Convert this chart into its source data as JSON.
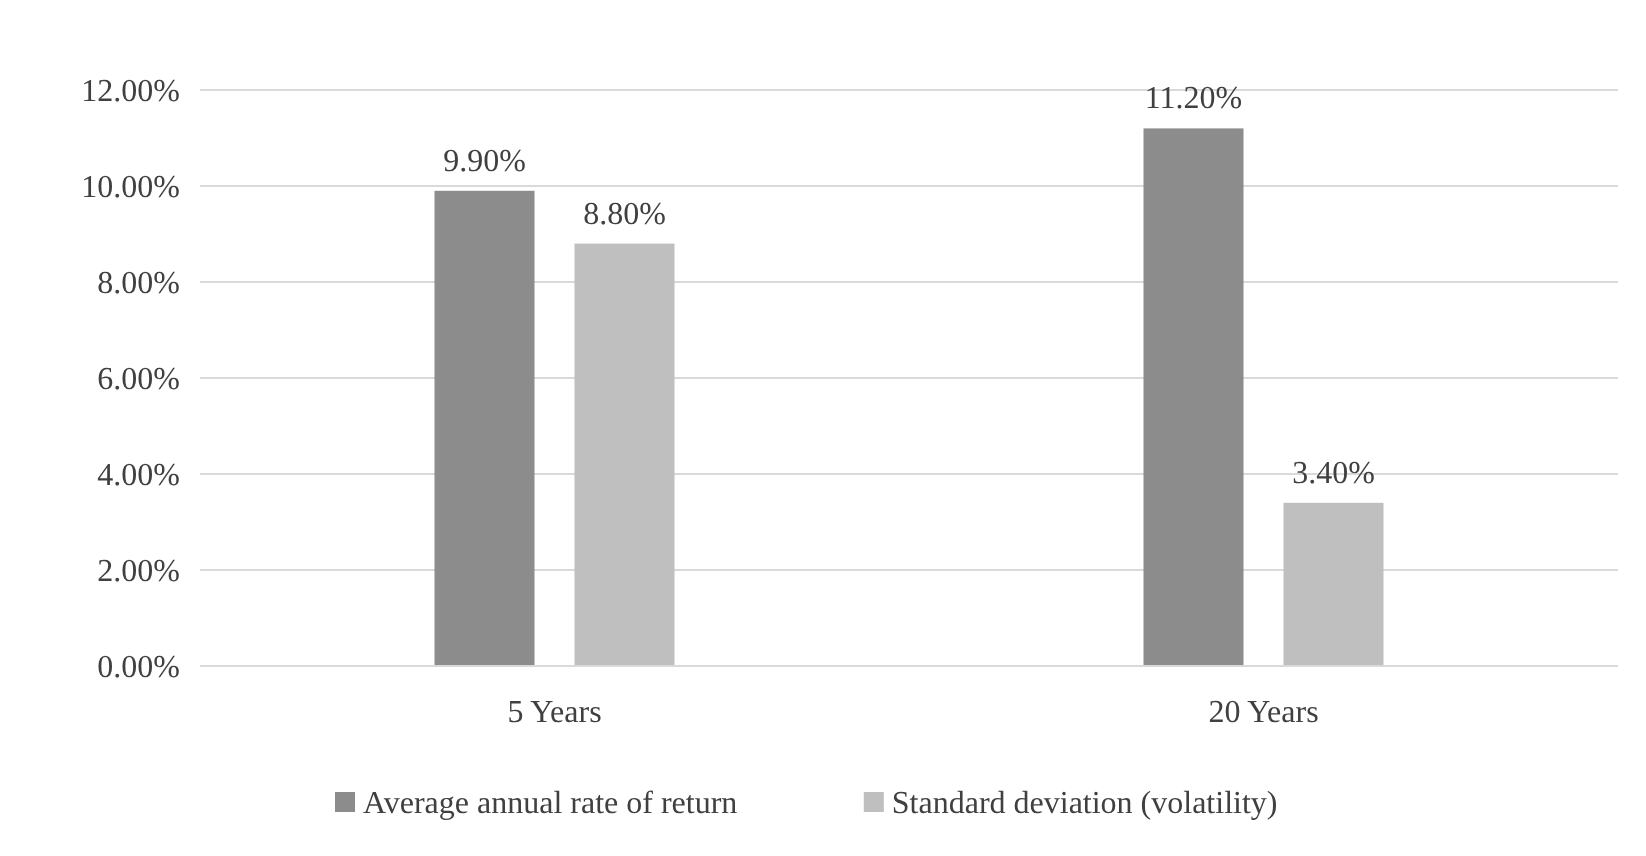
{
  "chart_data": {
    "type": "bar",
    "categories": [
      "5 Years",
      "20 Years"
    ],
    "series": [
      {
        "name": "Average annual rate of return",
        "color": "#8c8c8c",
        "values": [
          9.9,
          11.2
        ],
        "value_labels": [
          "9.90%",
          "11.20%"
        ]
      },
      {
        "name": "Standard deviation (volatility)",
        "color": "#bfbfbf",
        "values": [
          8.8,
          3.4
        ],
        "value_labels": [
          "8.80%",
          "3.40%"
        ]
      }
    ],
    "ylim": [
      0,
      12
    ],
    "yticks": [
      {
        "value": 0,
        "label": "0.00%"
      },
      {
        "value": 2,
        "label": "2.00%"
      },
      {
        "value": 4,
        "label": "4.00%"
      },
      {
        "value": 6,
        "label": "6.00%"
      },
      {
        "value": 8,
        "label": "8.00%"
      },
      {
        "value": 10,
        "label": "10.00%"
      },
      {
        "value": 12,
        "label": "12.00%"
      }
    ],
    "grid": "y",
    "legend": "bottom"
  }
}
